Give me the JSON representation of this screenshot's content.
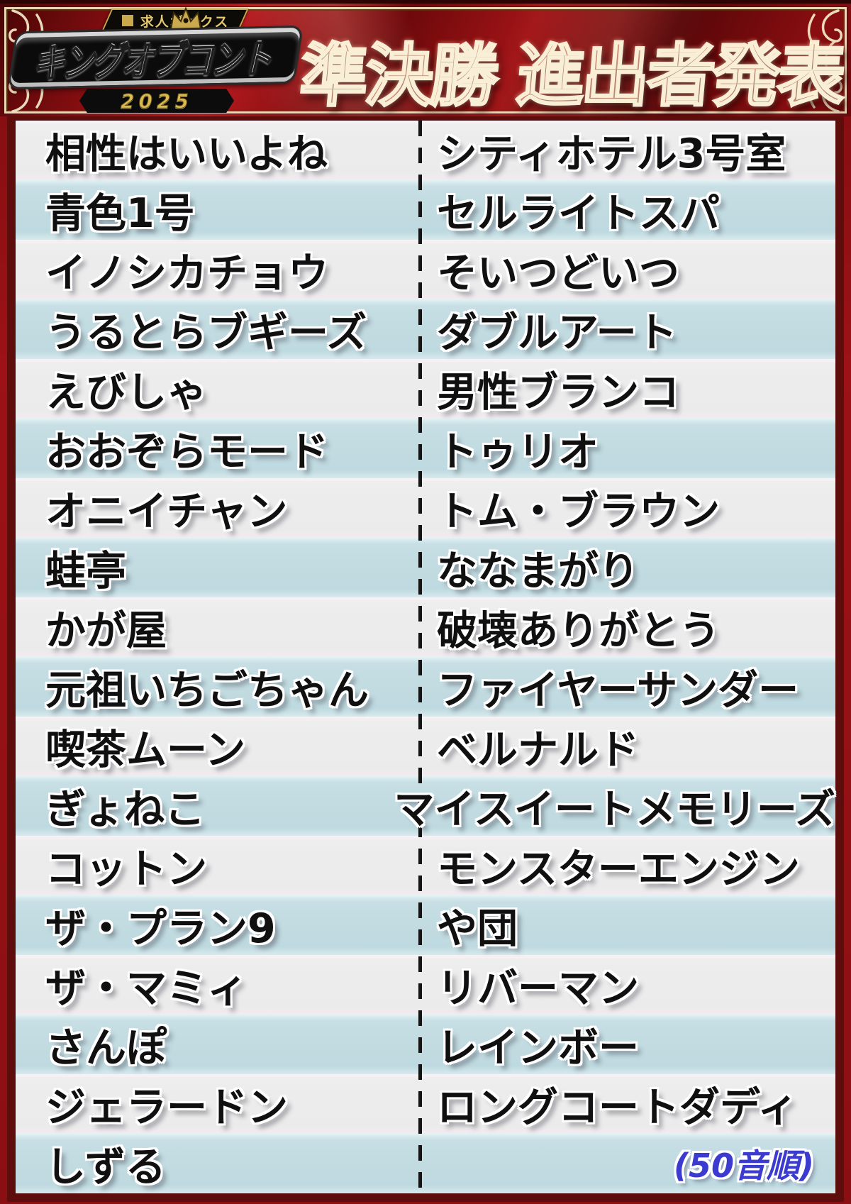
{
  "header": {
    "sponsor_label": "求人ボックス",
    "logo_title": "キングオブコント",
    "logo_year": "2025",
    "title": "準決勝 進出者発表"
  },
  "list": {
    "left": [
      "相性はいいよね",
      "青色1号",
      "イノシカチョウ",
      "うるとらブギーズ",
      "えびしゃ",
      "おおぞらモード",
      "オニイチャン",
      "蛙亭",
      "かが屋",
      "元祖いちごちゃん",
      "喫茶ムーン",
      "ぎょねこ",
      "コットン",
      "ザ・プラン9",
      "ザ・マミィ",
      "さんぽ",
      "ジェラードン",
      "しずる"
    ],
    "right": [
      "シティホテル3号室",
      "セルライトスパ",
      "そいつどいつ",
      "ダブルアート",
      "男性ブランコ",
      "トゥリオ",
      "トム・ブラウン",
      "ななまがり",
      "破壊ありがとう",
      "ファイヤーサンダー",
      "ベルナルド",
      "マイスイートメモリーズ",
      "モンスターエンジン",
      "や団",
      "リバーマン",
      "レインボー",
      "ロングコートダディ"
    ],
    "note": "(50音順)"
  },
  "colors": {
    "header_red": "#8f1014",
    "frame_gold": "#f0e4be",
    "board_border_maroon": "#5e0d0d",
    "row_white": "#ececec",
    "row_blue": "#c2dbe1",
    "name_text": "#101010",
    "title_red": "#d8101a",
    "note_blue": "#3b3bd0",
    "logo_silver": "#e9e9e9",
    "year_gold": "#d9b950"
  }
}
